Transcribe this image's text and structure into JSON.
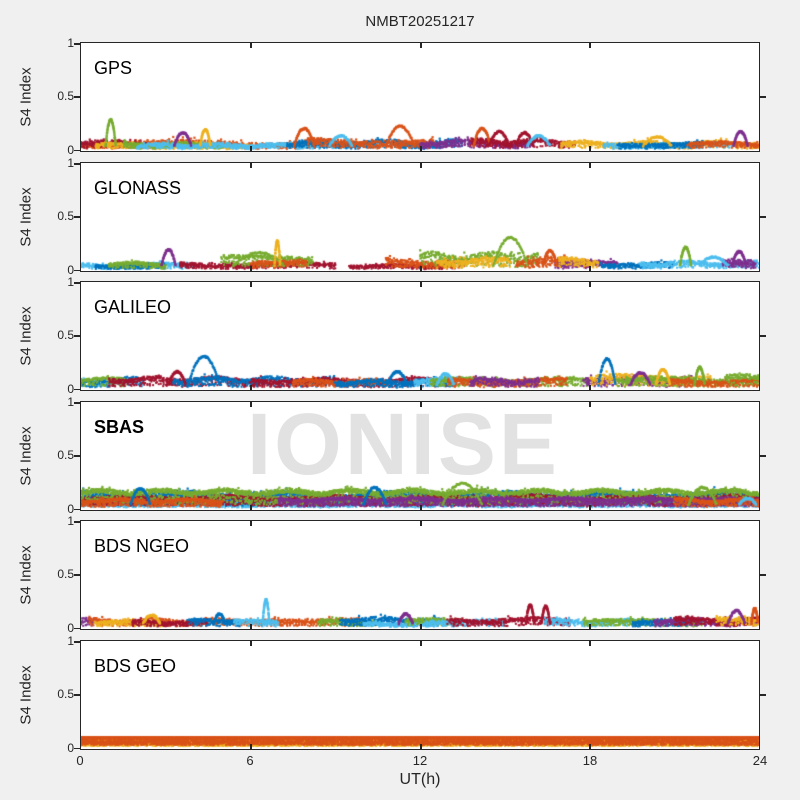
{
  "figure": {
    "background": "#f0f0f0",
    "axis_color": "#262626",
    "watermark_text": "IONISE",
    "watermark_color": "#e2e2e2"
  },
  "chart_data": {
    "type": "scatter",
    "title": "NMBT20251217",
    "xlabel": "UT(h)",
    "ylabel": "S4 Index",
    "xlim": [
      0,
      24
    ],
    "ylim": [
      0,
      1
    ],
    "xticks": [
      0,
      6,
      12,
      18,
      24
    ],
    "xtick_labels": [
      "0",
      "6",
      "12",
      "18",
      "24"
    ],
    "yticks": [
      0,
      0.5,
      1
    ],
    "ytick_labels": [
      "0",
      "0.5",
      "1"
    ],
    "grid": false,
    "legend": "none",
    "palette": {
      "blue": "#0072BD",
      "orange": "#D95319",
      "yellow": "#EDB120",
      "purple": "#7E2F8E",
      "green": "#77AC30",
      "cyan": "#4DBEEE",
      "red": "#A2142F"
    },
    "panels": [
      {
        "label": "GPS",
        "bold": false,
        "bands": [
          {
            "color": "orange",
            "t0": 0,
            "t1": 8,
            "base": 0.025,
            "amp": 0.07
          },
          {
            "color": "red",
            "t0": 0,
            "t1": 2.5,
            "base": 0.03,
            "amp": 0.06
          },
          {
            "color": "yellow",
            "t0": 0.5,
            "t1": 6,
            "base": 0.02,
            "amp": 0.05
          },
          {
            "color": "green",
            "t0": 1.5,
            "t1": 5,
            "base": 0.025,
            "amp": 0.05
          },
          {
            "color": "cyan",
            "t0": 2,
            "t1": 9.5,
            "base": 0.02,
            "amp": 0.05
          },
          {
            "color": "blue",
            "t0": 7.3,
            "t1": 13.5,
            "base": 0.03,
            "amp": 0.07
          },
          {
            "color": "orange",
            "t0": 8,
            "t1": 12.5,
            "base": 0.035,
            "amp": 0.08
          },
          {
            "color": "purple",
            "t0": 12,
            "t1": 16,
            "base": 0.03,
            "amp": 0.07
          },
          {
            "color": "red",
            "t0": 13.8,
            "t1": 17.5,
            "base": 0.04,
            "amp": 0.07
          },
          {
            "color": "yellow",
            "t0": 17,
            "t1": 24,
            "base": 0.03,
            "amp": 0.06
          },
          {
            "color": "cyan",
            "t0": 18.5,
            "t1": 23,
            "base": 0.025,
            "amp": 0.05
          },
          {
            "color": "blue",
            "t0": 19,
            "t1": 22,
            "base": 0.03,
            "amp": 0.05
          },
          {
            "color": "orange",
            "t0": 21.5,
            "t1": 24,
            "base": 0.03,
            "amp": 0.05
          }
        ],
        "spikes": [
          {
            "color": "green",
            "t": 1.05,
            "v": 0.28,
            "w": 0.18
          },
          {
            "color": "purple",
            "t": 3.6,
            "v": 0.16,
            "w": 0.3
          },
          {
            "color": "yellow",
            "t": 4.4,
            "v": 0.19,
            "w": 0.18
          },
          {
            "color": "orange",
            "t": 7.9,
            "v": 0.2,
            "w": 0.35
          },
          {
            "color": "cyan",
            "t": 9.2,
            "v": 0.13,
            "w": 0.4
          },
          {
            "color": "orange",
            "t": 11.3,
            "v": 0.22,
            "w": 0.5
          },
          {
            "color": "orange",
            "t": 14.2,
            "v": 0.2,
            "w": 0.3
          },
          {
            "color": "red",
            "t": 14.8,
            "v": 0.17,
            "w": 0.35
          },
          {
            "color": "red",
            "t": 15.7,
            "v": 0.16,
            "w": 0.3
          },
          {
            "color": "cyan",
            "t": 16.2,
            "v": 0.13,
            "w": 0.4
          },
          {
            "color": "yellow",
            "t": 20.4,
            "v": 0.12,
            "w": 0.5
          },
          {
            "color": "purple",
            "t": 23.35,
            "v": 0.17,
            "w": 0.25
          }
        ]
      },
      {
        "label": "GLONASS",
        "bold": false,
        "bands": [
          {
            "color": "cyan",
            "t0": 0,
            "t1": 4,
            "base": 0.02,
            "amp": 0.05
          },
          {
            "color": "blue",
            "t0": 0.5,
            "t1": 3,
            "base": 0.02,
            "amp": 0.04
          },
          {
            "color": "green",
            "t0": 1,
            "t1": 3,
            "base": 0.03,
            "amp": 0.05
          },
          {
            "color": "red",
            "t0": 3.5,
            "t1": 9,
            "base": 0.025,
            "amp": 0.05
          },
          {
            "color": "green",
            "t0": 5,
            "t1": 8.2,
            "base": 0.07,
            "amp": 0.07
          },
          {
            "color": "orange",
            "t0": 6,
            "t1": 8,
            "base": 0.03,
            "amp": 0.06
          },
          {
            "color": "red",
            "t0": 9.5,
            "t1": 13.2,
            "base": 0.02,
            "amp": 0.035
          },
          {
            "color": "orange",
            "t0": 10.8,
            "t1": 13.6,
            "base": 0.035,
            "amp": 0.08
          },
          {
            "color": "green",
            "t0": 12,
            "t1": 16.2,
            "base": 0.07,
            "amp": 0.1
          },
          {
            "color": "yellow",
            "t0": 12.6,
            "t1": 15.2,
            "base": 0.04,
            "amp": 0.08
          },
          {
            "color": "orange",
            "t0": 15.4,
            "t1": 18,
            "base": 0.04,
            "amp": 0.08
          },
          {
            "color": "purple",
            "t0": 16.8,
            "t1": 19,
            "base": 0.03,
            "amp": 0.06
          },
          {
            "color": "yellow",
            "t0": 16.9,
            "t1": 18.3,
            "base": 0.05,
            "amp": 0.07
          },
          {
            "color": "blue",
            "t0": 18.4,
            "t1": 21,
            "base": 0.03,
            "amp": 0.05
          },
          {
            "color": "cyan",
            "t0": 19.8,
            "t1": 24,
            "base": 0.03,
            "amp": 0.06
          },
          {
            "color": "purple",
            "t0": 22.7,
            "t1": 23.9,
            "base": 0.04,
            "amp": 0.09
          }
        ],
        "spikes": [
          {
            "color": "purple",
            "t": 3.1,
            "v": 0.19,
            "w": 0.25
          },
          {
            "color": "green",
            "t": 6.3,
            "v": 0.16,
            "w": 0.9
          },
          {
            "color": "yellow",
            "t": 6.95,
            "v": 0.27,
            "w": 0.1
          },
          {
            "color": "green",
            "t": 15.2,
            "v": 0.3,
            "w": 0.6
          },
          {
            "color": "orange",
            "t": 16.6,
            "v": 0.18,
            "w": 0.25
          },
          {
            "color": "green",
            "t": 21.4,
            "v": 0.21,
            "w": 0.2
          },
          {
            "color": "cyan",
            "t": 22.4,
            "v": 0.12,
            "w": 0.5
          },
          {
            "color": "purple",
            "t": 23.3,
            "v": 0.17,
            "w": 0.25
          }
        ]
      },
      {
        "label": "GALILEO",
        "bold": false,
        "bands": [
          {
            "color": "cyan",
            "t0": 0,
            "t1": 1.2,
            "base": 0.04,
            "amp": 0.05
          },
          {
            "color": "blue",
            "t0": 0,
            "t1": 2.2,
            "base": 0.05,
            "amp": 0.06
          },
          {
            "color": "green",
            "t0": 0,
            "t1": 1.6,
            "base": 0.06,
            "amp": 0.05
          },
          {
            "color": "red",
            "t0": 1,
            "t1": 6.5,
            "base": 0.05,
            "amp": 0.07
          },
          {
            "color": "blue",
            "t0": 3.3,
            "t1": 9,
            "base": 0.05,
            "amp": 0.07
          },
          {
            "color": "red",
            "t0": 6,
            "t1": 13,
            "base": 0.045,
            "amp": 0.06
          },
          {
            "color": "orange",
            "t0": 7.5,
            "t1": 11,
            "base": 0.045,
            "amp": 0.05
          },
          {
            "color": "blue",
            "t0": 9,
            "t1": 13.2,
            "base": 0.035,
            "amp": 0.06
          },
          {
            "color": "cyan",
            "t0": 11.8,
            "t1": 14.2,
            "base": 0.06,
            "amp": 0.05
          },
          {
            "color": "green",
            "t0": 12.4,
            "t1": 18,
            "base": 0.05,
            "amp": 0.06
          },
          {
            "color": "orange",
            "t0": 13,
            "t1": 17.2,
            "base": 0.045,
            "amp": 0.06
          },
          {
            "color": "purple",
            "t0": 13.8,
            "t1": 16.2,
            "base": 0.04,
            "amp": 0.07
          },
          {
            "color": "purple",
            "t0": 17.8,
            "t1": 21.6,
            "base": 0.05,
            "amp": 0.08
          },
          {
            "color": "yellow",
            "t0": 18,
            "t1": 22.3,
            "base": 0.06,
            "amp": 0.08
          },
          {
            "color": "green",
            "t0": 19,
            "t1": 24,
            "base": 0.05,
            "amp": 0.07
          },
          {
            "color": "orange",
            "t0": 20.8,
            "t1": 24,
            "base": 0.04,
            "amp": 0.05
          },
          {
            "color": "green",
            "t0": 22.8,
            "t1": 24,
            "base": 0.07,
            "amp": 0.07
          }
        ],
        "spikes": [
          {
            "color": "red",
            "t": 3.4,
            "v": 0.16,
            "w": 0.3
          },
          {
            "color": "blue",
            "t": 4.35,
            "v": 0.3,
            "w": 0.55
          },
          {
            "color": "blue",
            "t": 11.2,
            "v": 0.16,
            "w": 0.35
          },
          {
            "color": "cyan",
            "t": 12.9,
            "v": 0.14,
            "w": 0.3
          },
          {
            "color": "blue",
            "t": 18.62,
            "v": 0.28,
            "w": 0.3
          },
          {
            "color": "purple",
            "t": 19.8,
            "v": 0.15,
            "w": 0.35
          },
          {
            "color": "yellow",
            "t": 20.6,
            "v": 0.18,
            "w": 0.25
          },
          {
            "color": "green",
            "t": 21.9,
            "v": 0.2,
            "w": 0.18
          }
        ]
      },
      {
        "label": "SBAS",
        "bold": true,
        "bands": [
          {
            "color": "cyan",
            "t0": 0,
            "t1": 24,
            "base": 0.035,
            "amp": 0.045,
            "dt": 0.012
          },
          {
            "color": "blue",
            "t0": 0,
            "t1": 24,
            "base": 0.08,
            "amp": 0.09,
            "dt": 0.012
          },
          {
            "color": "red",
            "t0": 0,
            "t1": 24,
            "base": 0.07,
            "amp": 0.06,
            "dt": 0.012
          },
          {
            "color": "green",
            "t0": 0,
            "t1": 24,
            "base": 0.12,
            "amp": 0.07,
            "dt": 0.012
          },
          {
            "color": "purple",
            "t0": 7,
            "t1": 24,
            "base": 0.06,
            "amp": 0.05,
            "dt": 0.015
          },
          {
            "color": "orange",
            "t0": 0,
            "t1": 5,
            "base": 0.05,
            "amp": 0.05,
            "dt": 0.015
          },
          {
            "color": "orange",
            "t0": 21,
            "t1": 24,
            "base": 0.05,
            "amp": 0.05,
            "dt": 0.015
          }
        ],
        "spikes": [
          {
            "color": "blue",
            "t": 2.1,
            "v": 0.19,
            "w": 0.35
          },
          {
            "color": "blue",
            "t": 10.4,
            "v": 0.2,
            "w": 0.4
          },
          {
            "color": "green",
            "t": 13.5,
            "v": 0.24,
            "w": 0.7
          },
          {
            "color": "green",
            "t": 22,
            "v": 0.2,
            "w": 0.5
          },
          {
            "color": "cyan",
            "t": 23.6,
            "v": 0.1,
            "w": 0.3
          }
        ]
      },
      {
        "label": "BDS NGEO",
        "bold": false,
        "bands": [
          {
            "color": "purple",
            "t0": 0,
            "t1": 0.5,
            "base": 0.05,
            "amp": 0.08
          },
          {
            "color": "orange",
            "t0": 0.3,
            "t1": 7,
            "base": 0.035,
            "amp": 0.06
          },
          {
            "color": "yellow",
            "t0": 0.5,
            "t1": 3,
            "base": 0.025,
            "amp": 0.05
          },
          {
            "color": "red",
            "t0": 1.8,
            "t1": 4.5,
            "base": 0.03,
            "amp": 0.05
          },
          {
            "color": "blue",
            "t0": 3.8,
            "t1": 5.6,
            "base": 0.04,
            "amp": 0.05
          },
          {
            "color": "cyan",
            "t0": 5.4,
            "t1": 7,
            "base": 0.03,
            "amp": 0.05
          },
          {
            "color": "orange",
            "t0": 7,
            "t1": 9.8,
            "base": 0.045,
            "amp": 0.06
          },
          {
            "color": "green",
            "t0": 8.4,
            "t1": 10.5,
            "base": 0.035,
            "amp": 0.05
          },
          {
            "color": "blue",
            "t0": 9.2,
            "t1": 12.8,
            "base": 0.045,
            "amp": 0.06
          },
          {
            "color": "cyan",
            "t0": 10,
            "t1": 12.5,
            "base": 0.02,
            "amp": 0.035
          },
          {
            "color": "green",
            "t0": 11.5,
            "t1": 13.5,
            "base": 0.04,
            "amp": 0.05
          },
          {
            "color": "cyan",
            "t0": 12.2,
            "t1": 15,
            "base": 0.03,
            "amp": 0.045
          },
          {
            "color": "red",
            "t0": 13,
            "t1": 17.3,
            "base": 0.04,
            "amp": 0.06
          },
          {
            "color": "cyan",
            "t0": 16.4,
            "t1": 19.6,
            "base": 0.035,
            "amp": 0.05
          },
          {
            "color": "green",
            "t0": 17.8,
            "t1": 22,
            "base": 0.035,
            "amp": 0.05
          },
          {
            "color": "blue",
            "t0": 19.5,
            "t1": 21.5,
            "base": 0.03,
            "amp": 0.045
          },
          {
            "color": "purple",
            "t0": 20.3,
            "t1": 24,
            "base": 0.035,
            "amp": 0.06
          },
          {
            "color": "red",
            "t0": 21,
            "t1": 24,
            "base": 0.045,
            "amp": 0.06
          },
          {
            "color": "yellow",
            "t0": 22.5,
            "t1": 24,
            "base": 0.04,
            "amp": 0.06
          }
        ],
        "spikes": [
          {
            "color": "yellow",
            "t": 2.5,
            "v": 0.12,
            "w": 0.3
          },
          {
            "color": "blue",
            "t": 4.9,
            "v": 0.13,
            "w": 0.2
          },
          {
            "color": "cyan",
            "t": 6.55,
            "v": 0.26,
            "w": 0.12
          },
          {
            "color": "purple",
            "t": 11.5,
            "v": 0.13,
            "w": 0.25
          },
          {
            "color": "red",
            "t": 15.9,
            "v": 0.21,
            "w": 0.15
          },
          {
            "color": "red",
            "t": 16.45,
            "v": 0.2,
            "w": 0.15
          },
          {
            "color": "purple",
            "t": 23.2,
            "v": 0.16,
            "w": 0.3
          },
          {
            "color": "orange",
            "t": 23.85,
            "v": 0.18,
            "w": 0.12
          }
        ]
      },
      {
        "label": "BDS GEO",
        "bold": false,
        "bands": [
          {
            "color": "yellow",
            "t0": 0,
            "t1": 24,
            "base": 0.05,
            "amp": 0.03,
            "flat": 1,
            "dt": 0.004
          },
          {
            "color": "orange",
            "t0": 0,
            "t1": 24,
            "base": 0.085,
            "amp": 0.018,
            "flat": 1,
            "dt": 0.004
          }
        ],
        "spikes": []
      }
    ]
  }
}
